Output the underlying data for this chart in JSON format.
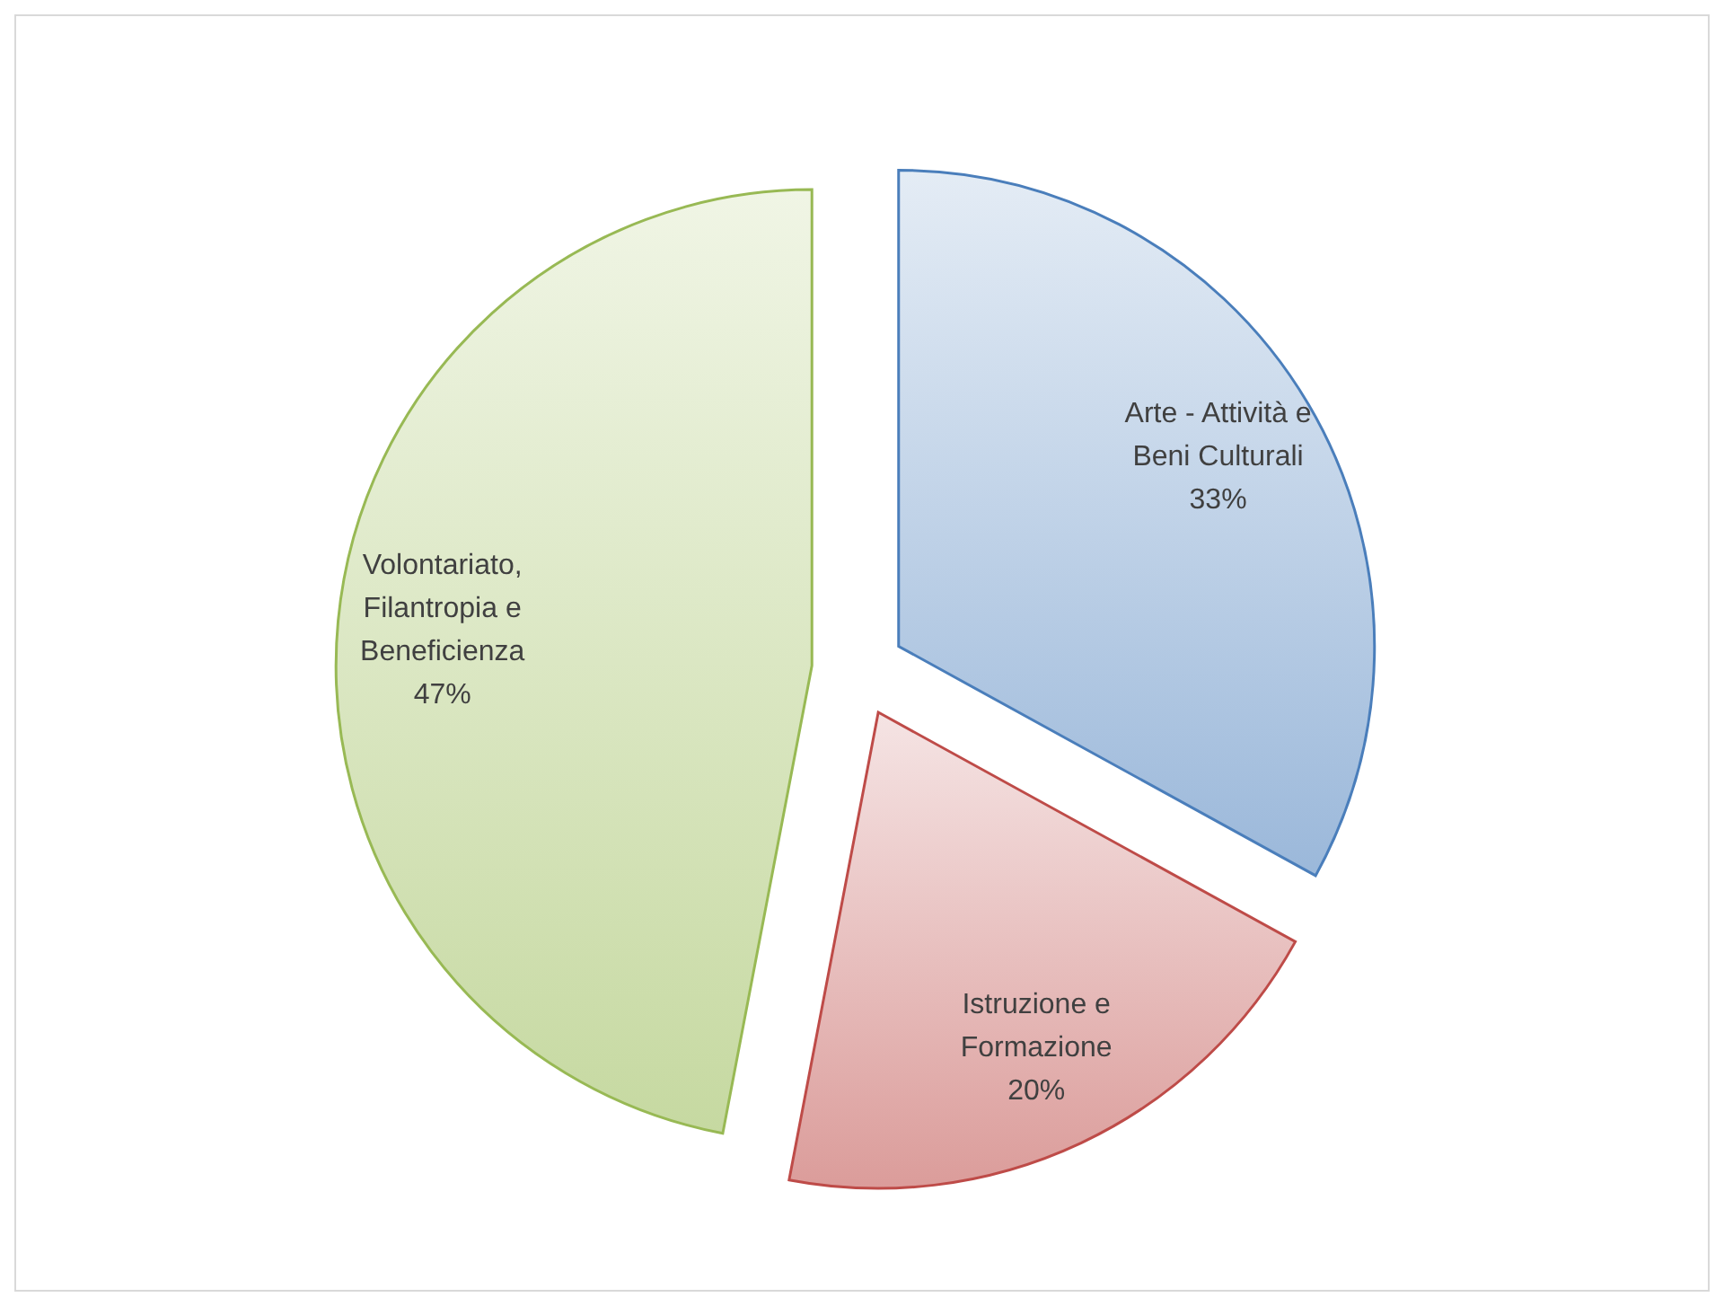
{
  "chart_data": {
    "type": "pie",
    "categories": [
      "Arte - Attività e Beni Culturali",
      "Istruzione e Formazione",
      "Volontariato, Filantropia e Beneficienza"
    ],
    "values": [
      33,
      20,
      47
    ],
    "colors": [
      "#4a7ebb",
      "#be4b48",
      "#98b954"
    ],
    "value_labels": [
      "33%",
      "20%",
      "47%"
    ]
  }
}
